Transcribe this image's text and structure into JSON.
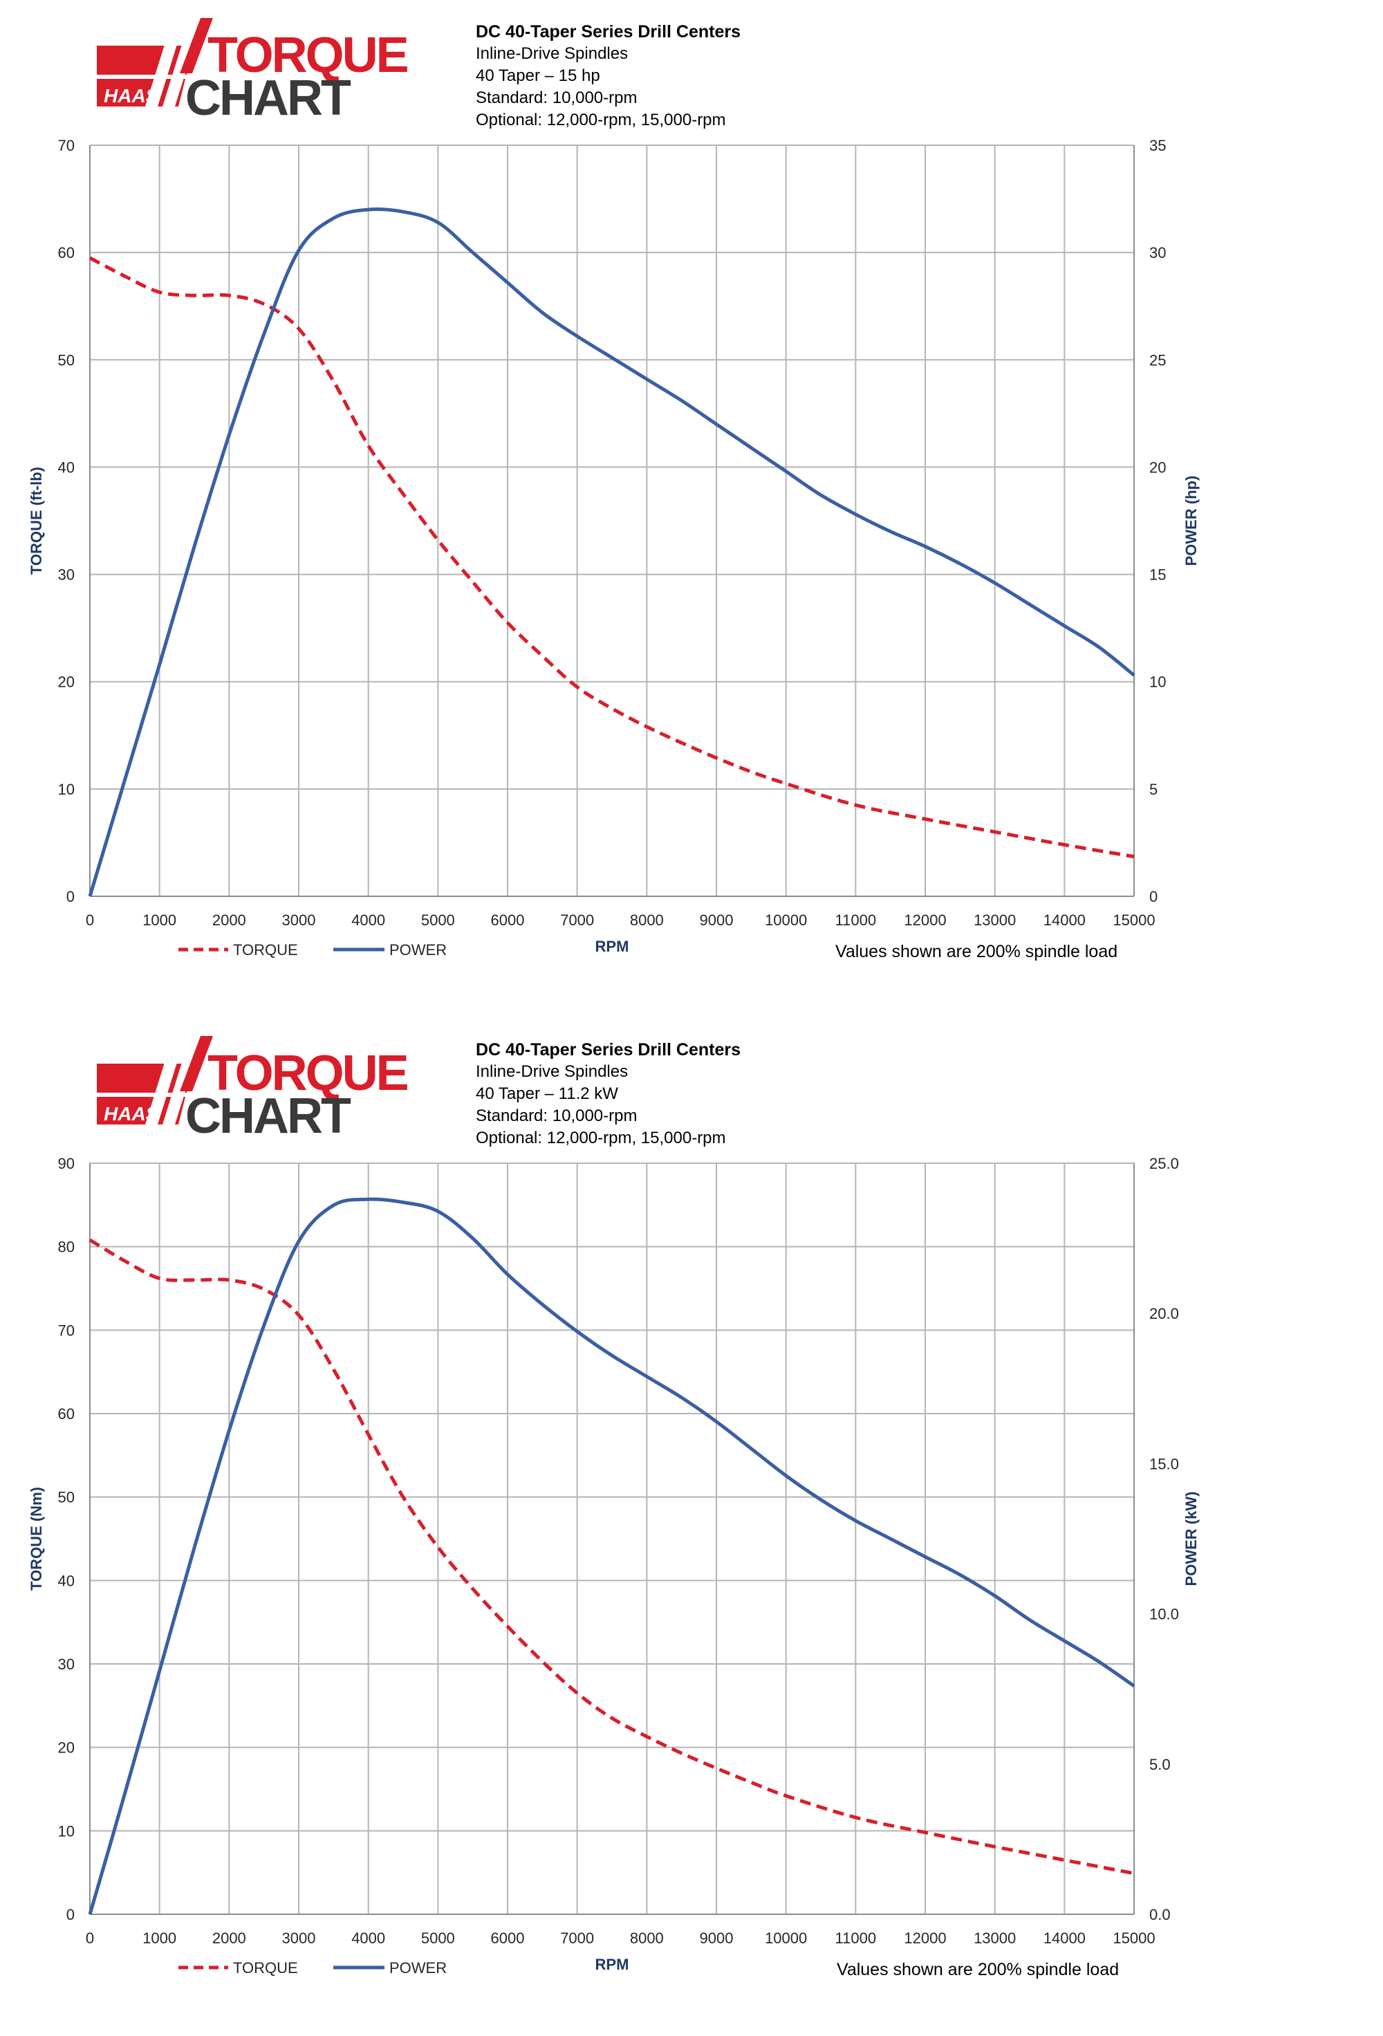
{
  "brand": {
    "logo_word_1": "TORQUE",
    "logo_word_2": "CHART",
    "logo_mark": "HAAS"
  },
  "charts": [
    {
      "header": {
        "title": "DC 40-Taper Series Drill Centers",
        "line1": "Inline-Drive Spindles",
        "line2": "40 Taper – 15 hp",
        "line3": "Standard: 10,000-rpm",
        "line4": "Optional: 12,000-rpm, 15,000-rpm"
      },
      "note": "Values shown are 200% spindle load",
      "legend": {
        "torque": "TORQUE",
        "power": "POWER"
      }
    },
    {
      "header": {
        "title": "DC 40-Taper Series Drill Centers",
        "line1": "Inline-Drive Spindles",
        "line2": "40 Taper – 11.2 kW",
        "line3": "Standard: 10,000-rpm",
        "line4": "Optional: 12,000-rpm, 15,000-rpm"
      },
      "note": "Values shown are 200% spindle load",
      "legend": {
        "torque": "TORQUE",
        "power": "POWER"
      }
    }
  ],
  "chart_data": [
    {
      "type": "line",
      "xlabel": "RPM",
      "ylabel": "TORQUE (ft-lb)",
      "y2label": "POWER (hp)",
      "xlim": [
        0,
        15000
      ],
      "ylim": [
        0,
        70
      ],
      "y2lim": [
        0,
        35
      ],
      "xticks": [
        "0",
        "1000",
        "2000",
        "3000",
        "4000",
        "5000",
        "6000",
        "7000",
        "8000",
        "9000",
        "10000",
        "11000",
        "12000",
        "13000",
        "14000",
        "15000"
      ],
      "yticks": [
        "0",
        "10",
        "20",
        "30",
        "40",
        "50",
        "60",
        "70"
      ],
      "y2ticks": [
        "0",
        "5",
        "10",
        "15",
        "20",
        "25",
        "30",
        "35"
      ],
      "grid": true,
      "legend_position": "bottom-left",
      "series": [
        {
          "name": "TORQUE",
          "axis": "left",
          "color": "#d91e2a",
          "style": "dashed",
          "x": [
            0,
            500,
            1000,
            1500,
            2000,
            2500,
            3000,
            3500,
            4000,
            4500,
            5000,
            5500,
            6000,
            6500,
            7000,
            7500,
            8000,
            8500,
            9000,
            9500,
            10000,
            11000,
            12000,
            13000,
            14000,
            15000
          ],
          "y": [
            59.5,
            57.8,
            56.3,
            56.0,
            56.0,
            55.2,
            52.9,
            48.0,
            42.0,
            37.5,
            33.2,
            29.3,
            25.5,
            22.4,
            19.5,
            17.5,
            15.8,
            14.3,
            12.9,
            11.6,
            10.5,
            8.5,
            7.2,
            6.0,
            4.8,
            3.7
          ]
        },
        {
          "name": "POWER",
          "axis": "right",
          "color": "#3a5fa3",
          "style": "solid",
          "x": [
            0,
            500,
            1000,
            1500,
            2000,
            2500,
            3000,
            3500,
            4000,
            4500,
            5000,
            5500,
            6000,
            6500,
            7000,
            7500,
            8000,
            8500,
            9000,
            9500,
            10000,
            10500,
            11000,
            11500,
            12000,
            12500,
            13000,
            13500,
            14000,
            14500,
            15000
          ],
          "y": [
            0,
            5.4,
            10.8,
            16.3,
            21.5,
            26.2,
            30.1,
            31.6,
            32.0,
            31.9,
            31.4,
            30.0,
            28.6,
            27.2,
            26.1,
            25.1,
            24.1,
            23.1,
            22.0,
            20.9,
            19.8,
            18.7,
            17.8,
            17.0,
            16.3,
            15.5,
            14.6,
            13.6,
            12.6,
            11.6,
            10.3
          ]
        }
      ]
    },
    {
      "type": "line",
      "xlabel": "RPM",
      "ylabel": "TORQUE (Nm)",
      "y2label": "POWER (kW)",
      "xlim": [
        0,
        15000
      ],
      "ylim": [
        0,
        90
      ],
      "y2lim": [
        0,
        25
      ],
      "xticks": [
        "0",
        "1000",
        "2000",
        "3000",
        "4000",
        "5000",
        "6000",
        "7000",
        "8000",
        "9000",
        "10000",
        "11000",
        "12000",
        "13000",
        "14000",
        "15000"
      ],
      "yticks": [
        "0",
        "10",
        "20",
        "30",
        "40",
        "50",
        "60",
        "70",
        "80",
        "90"
      ],
      "y2ticks": [
        "0.0",
        "5.0",
        "10.0",
        "15.0",
        "20.0",
        "25.0"
      ],
      "grid": true,
      "legend_position": "bottom-left",
      "series": [
        {
          "name": "TORQUE",
          "axis": "left",
          "color": "#d91e2a",
          "style": "dashed",
          "x": [
            0,
            500,
            1000,
            1500,
            2000,
            2500,
            3000,
            3500,
            4000,
            4500,
            5000,
            5500,
            6000,
            6500,
            7000,
            7500,
            8000,
            8500,
            9000,
            9500,
            10000,
            11000,
            12000,
            13000,
            14000,
            15000
          ],
          "y": [
            80.8,
            78.3,
            76.2,
            76.0,
            76.0,
            74.9,
            71.8,
            65.3,
            57.5,
            50.0,
            44.0,
            39.0,
            34.5,
            30.3,
            26.5,
            23.5,
            21.3,
            19.3,
            17.5,
            15.8,
            14.2,
            11.6,
            9.8,
            8.1,
            6.5,
            4.9
          ]
        },
        {
          "name": "POWER",
          "axis": "right",
          "color": "#3a5fa3",
          "style": "solid",
          "x": [
            0,
            500,
            1000,
            1500,
            2000,
            2500,
            3000,
            3500,
            4000,
            4500,
            5000,
            5500,
            6000,
            6500,
            7000,
            7500,
            8000,
            8500,
            9000,
            9500,
            10000,
            10500,
            11000,
            11500,
            12000,
            12500,
            13000,
            13500,
            14000,
            14500,
            15000
          ],
          "y": [
            0,
            4.0,
            8.1,
            12.2,
            16.1,
            19.6,
            22.4,
            23.6,
            23.8,
            23.7,
            23.4,
            22.5,
            21.3,
            20.3,
            19.4,
            18.6,
            17.9,
            17.2,
            16.4,
            15.5,
            14.6,
            13.8,
            13.1,
            12.5,
            11.9,
            11.3,
            10.6,
            9.8,
            9.1,
            8.4,
            7.6
          ]
        }
      ]
    }
  ]
}
